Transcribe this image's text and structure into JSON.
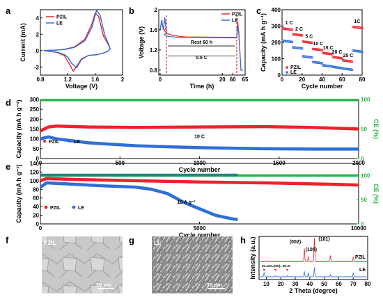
{
  "colors": {
    "pzil": "#e8242c",
    "le": "#2f6fd6",
    "ce": "#2db24a",
    "ce_le": "#1a8a7a",
    "rest": "#e8242c"
  },
  "panels": {
    "a": {
      "label": "a",
      "xlabel": "Voltage (V)",
      "ylabel": "Current (mA)"
    },
    "b": {
      "label": "b",
      "xlabel": "Time (h)",
      "ylabel": "Voltage (V)",
      "rest_text": "Rest 60 h",
      "rate_text": "0.5 C"
    },
    "c": {
      "label": "c",
      "xlabel": "Cycle  number",
      "ylabel": "Capacity (mA h g⁻¹)"
    },
    "d": {
      "label": "d",
      "xlabel": "Cycle  number",
      "ylabel": "Capacity (mA h g⁻¹)",
      "y2label": "CE (%)",
      "rate_text": "10 C"
    },
    "e": {
      "label": "e",
      "xlabel": "Cycle  number",
      "ylabel": "Capacity (mA h g⁻¹)",
      "y2label": "CE (%)",
      "rate_text": "10 A g⁻¹"
    },
    "f": {
      "label": "f",
      "tag": "PZIL",
      "scale": "10 μm"
    },
    "g": {
      "label": "g",
      "tag": "LE",
      "scale": "10 μm"
    },
    "h": {
      "label": "h",
      "xlabel": "2 Theta (degree)",
      "ylabel": "Intensity (a.u.)",
      "peak1": "(002)",
      "peak2": "(100)",
      "peak3": "(101)",
      "byproduct": "Zn₄SO₄(OH)₆·5H₂O",
      "pzil": "PZIL",
      "le": "LE"
    }
  },
  "legend": {
    "pzil": "PZIL",
    "le": "LE"
  },
  "chart_data": [
    {
      "panel": "a",
      "type": "line",
      "xlabel": "Voltage (V)",
      "ylabel": "Current (mA)",
      "xlim": [
        0.8,
        2.0
      ],
      "ylim": [
        -3,
        5
      ],
      "xticks": [
        0.8,
        1.2,
        1.6,
        2.0
      ],
      "yticks": [
        -2,
        0,
        2,
        4
      ],
      "series": [
        {
          "name": "PZIL",
          "x": [
            0.85,
            1.0,
            1.15,
            1.3,
            1.45,
            1.55,
            1.6,
            1.65,
            1.72,
            1.8,
            1.82,
            1.78,
            1.72,
            1.62,
            1.5,
            1.4,
            1.33,
            1.28,
            1.22,
            1.15,
            1.05,
            0.95,
            0.85
          ],
          "y": [
            0.0,
            0.05,
            0.15,
            0.45,
            1.4,
            3.2,
            4.6,
            4.2,
            1.8,
            0.6,
            0.2,
            -0.1,
            -0.3,
            -0.5,
            -0.6,
            -1.0,
            -1.9,
            -2.5,
            -1.6,
            -0.6,
            -0.25,
            -0.1,
            0.0
          ]
        },
        {
          "name": "LE",
          "x": [
            0.85,
            1.0,
            1.15,
            1.3,
            1.45,
            1.55,
            1.62,
            1.67,
            1.74,
            1.8,
            1.82,
            1.78,
            1.72,
            1.62,
            1.5,
            1.4,
            1.33,
            1.26,
            1.2,
            1.15,
            1.05,
            0.95,
            0.85
          ],
          "y": [
            0.0,
            0.05,
            0.12,
            0.4,
            1.2,
            2.8,
            4.9,
            4.4,
            1.9,
            0.7,
            0.2,
            -0.1,
            -0.3,
            -0.5,
            -0.6,
            -1.1,
            -2.1,
            -1.6,
            -0.8,
            -0.5,
            -0.2,
            -0.1,
            0.0
          ]
        }
      ]
    },
    {
      "panel": "b",
      "type": "line",
      "xlabel": "Time (h)",
      "ylabel": "Voltage (V)",
      "xlim": [
        0,
        65
      ],
      "ylim": [
        0.7,
        2.0
      ],
      "xticks": [
        0,
        5,
        10,
        15,
        20,
        60,
        65
      ],
      "yticks": [
        0.8,
        1.2,
        1.6,
        2.0
      ],
      "series": [
        {
          "name": "PZIL",
          "x": [
            0,
            0.5,
            1,
            1.5,
            2,
            3,
            6,
            10,
            15,
            20,
            59,
            60,
            60.5,
            61,
            62,
            63
          ],
          "y": [
            1.6,
            1.8,
            1.6,
            1.8,
            1.65,
            1.58,
            1.52,
            1.49,
            1.47,
            1.46,
            1.45,
            1.45,
            1.75,
            1.55,
            0.8,
            0.8
          ]
        },
        {
          "name": "LE",
          "x": [
            0,
            0.5,
            1,
            1.5,
            2,
            3,
            6,
            10,
            15,
            20,
            59,
            60,
            60.5,
            61,
            62,
            63
          ],
          "y": [
            1.6,
            1.8,
            1.6,
            1.85,
            1.55,
            1.5,
            1.47,
            1.46,
            1.45,
            1.45,
            1.44,
            1.44,
            1.7,
            1.5,
            0.8,
            0.8
          ]
        }
      ]
    },
    {
      "panel": "c",
      "type": "scatter",
      "xlabel": "Cycle  number",
      "ylabel": "Capacity (mA h g⁻¹)",
      "xlim": [
        0,
        80
      ],
      "ylim": [
        0,
        400
      ],
      "xticks": [
        0,
        20,
        40,
        60,
        80
      ],
      "yticks": [
        0,
        100,
        200,
        300,
        400
      ],
      "rate_labels": [
        "1 C",
        "2 C",
        "5 C",
        "10 C",
        "15 C",
        "20 C",
        "25 C",
        "1C"
      ],
      "series": [
        {
          "name": "PZIL",
          "steps": [
            [
              1,
              10,
              285
            ],
            [
              11,
              20,
              250
            ],
            [
              21,
              30,
              205
            ],
            [
              31,
              40,
              160
            ],
            [
              41,
              50,
              135
            ],
            [
              51,
              60,
              110
            ],
            [
              61,
              70,
              90
            ],
            [
              71,
              80,
              295
            ]
          ]
        },
        {
          "name": "LE",
          "steps": [
            [
              1,
              10,
              210
            ],
            [
              11,
              20,
              170
            ],
            [
              21,
              30,
              115
            ],
            [
              31,
              40,
              80
            ],
            [
              41,
              50,
              60
            ],
            [
              51,
              60,
              50
            ],
            [
              61,
              70,
              40
            ],
            [
              71,
              80,
              150
            ]
          ]
        }
      ]
    },
    {
      "panel": "d",
      "type": "scatter",
      "xlabel": "Cycle  number",
      "ylabel": "Capacity (mA h g⁻¹)",
      "y2label": "CE (%)",
      "xlim": [
        0,
        2000
      ],
      "ylim": [
        0,
        300
      ],
      "y2lim": [
        0,
        100
      ],
      "xticks": [
        0,
        500,
        1000,
        1500,
        2000
      ],
      "yticks": [
        0,
        50,
        100,
        150,
        200,
        250,
        300
      ],
      "y2ticks": [
        0,
        50,
        100
      ],
      "series": [
        {
          "name": "PZIL",
          "x": [
            0,
            50,
            100,
            300,
            600,
            1000,
            1400,
            1700,
            2000
          ],
          "y": [
            140,
            160,
            165,
            160,
            158,
            160,
            162,
            158,
            150
          ]
        },
        {
          "name": "LE",
          "x": [
            0,
            50,
            100,
            300,
            600,
            1000,
            1400,
            1700,
            2000
          ],
          "y": [
            100,
            110,
            100,
            80,
            65,
            55,
            50,
            48,
            48
          ]
        },
        {
          "name": "CE",
          "x": [
            0,
            2000
          ],
          "y": [
            99,
            99
          ]
        }
      ]
    },
    {
      "panel": "e",
      "type": "scatter",
      "xlabel": "Cycle  number",
      "ylabel": "Capacity (mA h g⁻¹)",
      "y2label": "CE (%)",
      "xlim": [
        0,
        10000
      ],
      "ylim": [
        0,
        140
      ],
      "y2lim": [
        0,
        125
      ],
      "xticks": [
        0,
        5000,
        10000
      ],
      "yticks": [
        0,
        20,
        40,
        60,
        80,
        100,
        120,
        140
      ],
      "y2ticks": [
        0,
        50,
        100
      ],
      "series": [
        {
          "name": "PZIL",
          "x": [
            0,
            200,
            1000,
            3000,
            5000,
            7000,
            9000,
            10000
          ],
          "y": [
            100,
            105,
            103,
            100,
            97,
            95,
            92,
            90
          ]
        },
        {
          "name": "LE",
          "x": [
            0,
            200,
            1000,
            2000,
            3000,
            3500,
            4000,
            4500,
            5000,
            5500,
            6000,
            6200
          ],
          "y": [
            85,
            95,
            92,
            88,
            85,
            80,
            70,
            50,
            35,
            20,
            12,
            10
          ]
        },
        {
          "name": "CE",
          "x": [
            0,
            10000
          ],
          "y": [
            100,
            100
          ]
        }
      ]
    },
    {
      "panel": "h",
      "type": "line",
      "xlabel": "2 Theta (degree)",
      "ylabel": "Intensity (a.u.)",
      "xlim": [
        5,
        80
      ],
      "xticks": [
        10,
        20,
        30,
        40,
        50,
        60,
        70,
        80
      ],
      "series": [
        {
          "name": "PZIL",
          "peaks": [
            [
              36.3,
              0.55
            ],
            [
              39.0,
              0.2
            ],
            [
              43.2,
              1.0
            ],
            [
              54.3,
              0.25
            ],
            [
              70.1,
              0.2
            ]
          ]
        },
        {
          "name": "LE",
          "peaks": [
            [
              8.5,
              0.3
            ],
            [
              16.3,
              0.08
            ],
            [
              24.5,
              0.06
            ],
            [
              36.3,
              0.35
            ],
            [
              39.0,
              0.25
            ],
            [
              43.2,
              0.6
            ],
            [
              54.3,
              0.15
            ],
            [
              70.1,
              0.25
            ]
          ]
        }
      ]
    }
  ]
}
